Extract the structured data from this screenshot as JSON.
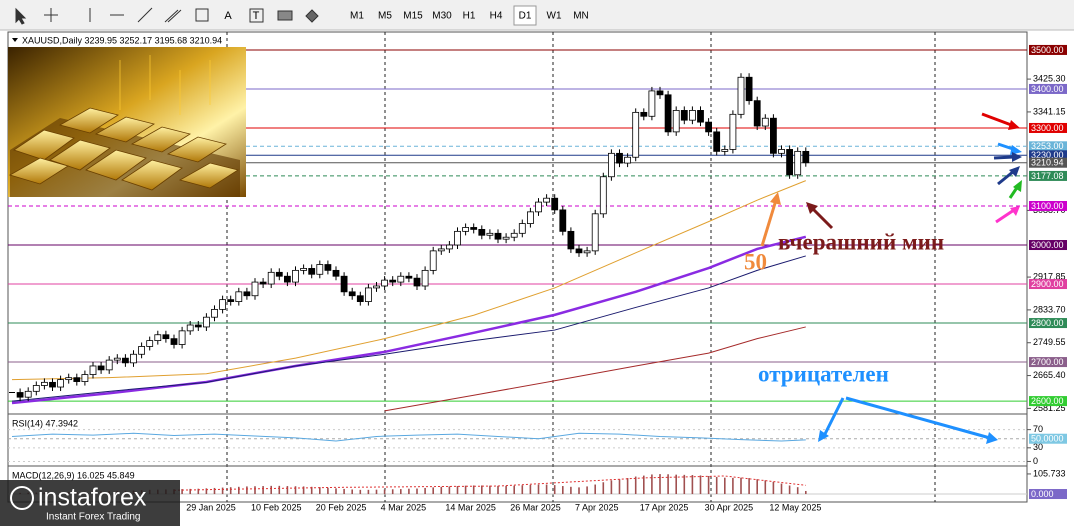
{
  "toolbar": {
    "tools": [
      "A",
      "T"
    ],
    "timeframes": [
      "M1",
      "M5",
      "M15",
      "M30",
      "H1",
      "H4",
      "D1",
      "W1",
      "MN"
    ]
  },
  "logo": {
    "name": "instaforex",
    "tagline": "Instant Forex Trading"
  },
  "chart_data": {
    "type": "candlestick",
    "title": "XAUUSD,Daily  3239.95 3252.17 3195.68 3210.94",
    "categories": [
      null,
      null,
      null,
      null,
      null,
      null,
      null,
      null,
      null,
      null,
      null,
      null,
      null,
      null,
      null,
      null,
      null,
      null,
      null,
      null,
      null,
      null,
      "29 Jan 2025",
      null,
      null,
      null,
      null,
      null,
      null,
      null,
      "10 Feb 2025",
      null,
      null,
      null,
      null,
      null,
      null,
      null,
      "20 Feb 2025",
      null,
      null,
      null,
      null,
      null,
      null,
      null,
      "4 Mar 2025",
      null,
      null,
      null,
      null,
      null,
      null,
      null,
      "14 Mar 2025",
      null,
      null,
      null,
      null,
      null,
      null,
      null,
      "26 Mar 2025",
      null,
      null,
      null,
      null,
      null,
      null,
      null,
      "7 Apr 2025",
      null,
      null,
      null,
      null,
      null,
      null,
      null,
      "17 Apr 2025",
      null,
      null,
      null,
      null,
      null,
      null,
      null,
      "30 Apr 2025",
      null,
      null,
      null,
      null,
      null,
      null,
      null,
      "12 May 2025",
      null,
      null,
      null,
      null
    ],
    "closes": [
      2622,
      2610,
      2625,
      2640,
      2648,
      2636,
      2655,
      2660,
      2650,
      2668,
      2690,
      2680,
      2705,
      2710,
      2698,
      2720,
      2740,
      2755,
      2770,
      2760,
      2745,
      2780,
      2795,
      2790,
      2815,
      2835,
      2860,
      2855,
      2880,
      2870,
      2905,
      2900,
      2930,
      2920,
      2905,
      2935,
      2940,
      2925,
      2950,
      2935,
      2920,
      2880,
      2870,
      2855,
      2890,
      2895,
      2910,
      2905,
      2920,
      2915,
      2895,
      2935,
      2985,
      2990,
      3000,
      3035,
      3045,
      3040,
      3025,
      3030,
      3015,
      3020,
      3030,
      3055,
      3085,
      3110,
      3120,
      3090,
      3035,
      2990,
      2980,
      2985,
      3080,
      3175,
      3235,
      3210,
      3225,
      3340,
      3330,
      3395,
      3385,
      3290,
      3345,
      3320,
      3345,
      3315,
      3290,
      3240,
      3245,
      3335,
      3430,
      3370,
      3305,
      3325,
      3235,
      3245,
      3180,
      3240,
      3210.94
    ],
    "ylim": [
      2572,
      3546
    ],
    "yticks": [
      {
        "value": 3425.3,
        "label": "3425.30"
      },
      {
        "value": 3341.15,
        "label": "3341.15"
      },
      {
        "value": 3088.7,
        "label": "3088.70"
      },
      {
        "value": 2917.85,
        "label": "2917.85"
      },
      {
        "value": 2833.7,
        "label": "2833.70"
      },
      {
        "value": 2749.55,
        "label": "2749.55"
      },
      {
        "value": 2665.4,
        "label": "2665.40"
      },
      {
        "value": 2581.25,
        "label": "2581.25"
      }
    ],
    "levels": [
      {
        "value": 3500,
        "label": "3500.00",
        "color": "#8b0000",
        "dashed": false
      },
      {
        "value": 3400,
        "label": "3400.00",
        "color": "#7b68c8",
        "dashed": false
      },
      {
        "value": 3300,
        "label": "3300.00",
        "color": "#e00000",
        "dashed": false
      },
      {
        "value": 3253,
        "label": "3253.00",
        "color": "#6ab4d8",
        "dashed": true
      },
      {
        "value": 3230,
        "label": "3230.00",
        "color": "#1e3a8a",
        "dashed": false
      },
      {
        "value": 3210.94,
        "label": "3210.94",
        "color": "#555555",
        "dashed": false
      },
      {
        "value": 3177.08,
        "label": "3177.08",
        "color": "#2e8b57",
        "dashed": true
      },
      {
        "value": 3100,
        "label": "3100.00",
        "color": "#cc00cc",
        "dashed": true
      },
      {
        "value": 3000,
        "label": "3000.00",
        "color": "#660066",
        "dashed": false
      },
      {
        "value": 2900,
        "label": "2900.00",
        "color": "#e040a0",
        "dashed": false
      },
      {
        "value": 2800,
        "label": "2800.00",
        "color": "#2e8b57",
        "dashed": false
      },
      {
        "value": 2700,
        "label": "2700.00",
        "color": "#8b5f8b",
        "dashed": false
      },
      {
        "value": 2600,
        "label": "2600.00",
        "color": "#32cd32",
        "dashed": false
      }
    ],
    "moving_averages": [
      {
        "color": "#e0a030",
        "width": 1,
        "x": [
          0,
          12,
          24,
          35,
          46,
          57,
          67,
          77,
          86,
          92,
          98
        ],
        "values": [
          2655,
          2660,
          2670,
          2710,
          2760,
          2820,
          2890,
          2980,
          3060,
          3115,
          3165
        ]
      },
      {
        "color": "#8a2be2",
        "width": 2.5,
        "x": [
          0,
          12,
          24,
          35,
          46,
          57,
          67,
          77,
          86,
          92,
          98
        ],
        "values": [
          2595,
          2620,
          2649,
          2690,
          2726,
          2775,
          2821,
          2880,
          2941,
          2990,
          3021
        ]
      },
      {
        "color": "#1a1a6e",
        "width": 1,
        "x": [
          0,
          12,
          24,
          35,
          46,
          57,
          67,
          77,
          86,
          92,
          98
        ],
        "values": [
          2600,
          2625,
          2648,
          2690,
          2720,
          2755,
          2782,
          2840,
          2890,
          2935,
          2972
        ]
      },
      {
        "color": "#a52a2a",
        "width": 1,
        "x": [
          0,
          12,
          24,
          35,
          46,
          57,
          67,
          77,
          86,
          92,
          98
        ],
        "values": [
          null,
          null,
          null,
          null,
          2575,
          2615,
          2652,
          2690,
          2723,
          2760,
          2790
        ]
      }
    ],
    "annotations": [
      {
        "text": "вчерашний мин",
        "color": "#7b1a1a"
      },
      {
        "text": "50",
        "color": "#f08a3c"
      },
      {
        "text": "отрицателен",
        "color": "#1e90ff"
      }
    ],
    "rsi": {
      "title": "RSI(14) 47.3942",
      "ylim": [
        -10,
        100
      ],
      "yticks": [
        70,
        30,
        0
      ],
      "level": {
        "value": 50,
        "label": "50.0000"
      },
      "color": "#5aa8e0",
      "x": [
        0,
        5,
        10,
        15,
        20,
        25,
        30,
        35,
        40,
        45,
        50,
        55,
        60,
        65,
        70,
        75,
        80,
        85,
        90,
        95,
        98
      ],
      "values": [
        55,
        60,
        58,
        62,
        57,
        60,
        56,
        52,
        45,
        55,
        58,
        60,
        55,
        50,
        62,
        60,
        55,
        52,
        48,
        45,
        47.3942
      ]
    },
    "macd": {
      "title": "MACD(12,26,9) 16.025 45.849",
      "ylim": [
        -42,
        137
      ],
      "yticks": [
        {
          "value": 105.733,
          "label": "105.733"
        }
      ],
      "level": {
        "value": 0,
        "label": "0.000"
      },
      "values": [
        5,
        6,
        7,
        8,
        8,
        9,
        10,
        11,
        11,
        12,
        13,
        14,
        15,
        16,
        17,
        18,
        20,
        22,
        23,
        24,
        25,
        26,
        27,
        28,
        30,
        32,
        34,
        36,
        38,
        40,
        41,
        42,
        43,
        43,
        42,
        41,
        40,
        38,
        36,
        33,
        30,
        27,
        24,
        22,
        22,
        23,
        24,
        25,
        26,
        28,
        29,
        32,
        35,
        38,
        40,
        42,
        44,
        45,
        45,
        44,
        43,
        43,
        44,
        46,
        48,
        50,
        50,
        47,
        42,
        38,
        35,
        40,
        50,
        62,
        72,
        78,
        84,
        92,
        97,
        103,
        105,
        104,
        102,
        101,
        100,
        98,
        95,
        90,
        86,
        85,
        86,
        84,
        78,
        72,
        64,
        55,
        45,
        36,
        16.025
      ],
      "signal": {
        "color": "#e03030",
        "x": [
          20,
          40,
          60,
          78,
          88,
          98
        ],
        "values": [
          20,
          35,
          42,
          85,
          95,
          45.849
        ]
      }
    }
  }
}
